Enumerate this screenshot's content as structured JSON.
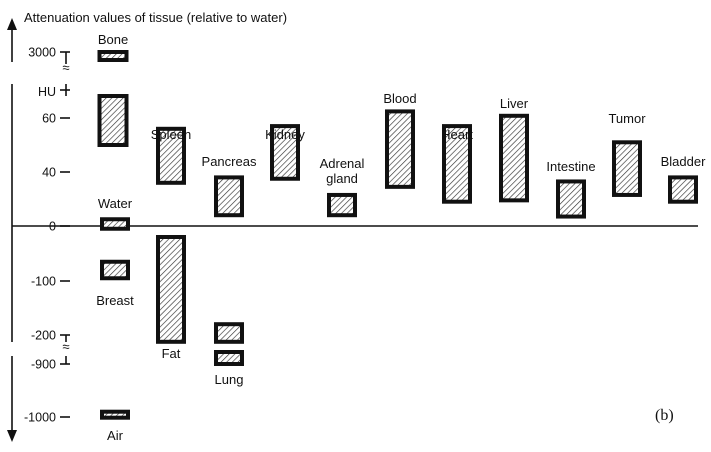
{
  "chart_data": {
    "type": "bar",
    "title": "Attenuation values of tissue (relative to water)",
    "panel_label": "(b)",
    "unit_label": "HU",
    "axis_break_labels": [
      "≈",
      "≈"
    ],
    "y_ticks": [
      3000,
      60,
      40,
      0,
      -100,
      -200,
      -900,
      -1000
    ],
    "y_tick_labels": [
      "3000",
      "60",
      "40",
      "0",
      "-100",
      "-200",
      "-900",
      "-1000"
    ],
    "grid": false,
    "hatch_color": "#333333",
    "tissues": [
      {
        "name": "Bone",
        "label_lines": [
          "Bone"
        ],
        "ranges": [
          [
            2200,
            3000
          ],
          [
            50,
            70
          ]
        ],
        "broken": true
      },
      {
        "name": "Water",
        "label_lines": [
          "Water"
        ],
        "ranges": [
          [
            -5,
            5
          ]
        ]
      },
      {
        "name": "Breast",
        "label_lines": [
          "Breast"
        ],
        "ranges": [
          [
            -95,
            -65
          ]
        ]
      },
      {
        "name": "Spleen",
        "label_lines": [
          "Spleen"
        ],
        "ranges": [
          [
            32,
            56
          ]
        ]
      },
      {
        "name": "Fat",
        "label_lines": [
          "Fat"
        ],
        "ranges": [
          [
            -220,
            -20
          ]
        ]
      },
      {
        "name": "Pancreas",
        "label_lines": [
          "Pancreas"
        ],
        "ranges": [
          [
            8,
            36
          ]
        ]
      },
      {
        "name": "Lung",
        "label_lines": [
          "Lung"
        ],
        "ranges": [
          [
            -220,
            -180
          ],
          [
            -900,
            -860
          ]
        ],
        "broken": true
      },
      {
        "name": "Kidney",
        "label_lines": [
          "Kidney"
        ],
        "ranges": [
          [
            35,
            57
          ]
        ]
      },
      {
        "name": "Adrenal gland",
        "label_lines": [
          "Adrenal",
          "gland"
        ],
        "ranges": [
          [
            8,
            23
          ]
        ]
      },
      {
        "name": "Blood",
        "label_lines": [
          "Blood"
        ],
        "ranges": [
          [
            29,
            63
          ]
        ]
      },
      {
        "name": "Heart",
        "label_lines": [
          "Heart"
        ],
        "ranges": [
          [
            18,
            57
          ]
        ]
      },
      {
        "name": "Liver",
        "label_lines": [
          "Liver"
        ],
        "ranges": [
          [
            19,
            61
          ]
        ]
      },
      {
        "name": "Intestine",
        "label_lines": [
          "Intestine"
        ],
        "ranges": [
          [
            7,
            33
          ]
        ]
      },
      {
        "name": "Tumor",
        "label_lines": [
          "Tumor"
        ],
        "ranges": [
          [
            23,
            51
          ]
        ]
      },
      {
        "name": "Bladder",
        "label_lines": [
          "Bladder"
        ],
        "ranges": [
          [
            18,
            36
          ]
        ]
      },
      {
        "name": "Air",
        "label_lines": [
          "Air"
        ],
        "ranges": [
          [
            -1000,
            -990
          ]
        ]
      }
    ]
  }
}
